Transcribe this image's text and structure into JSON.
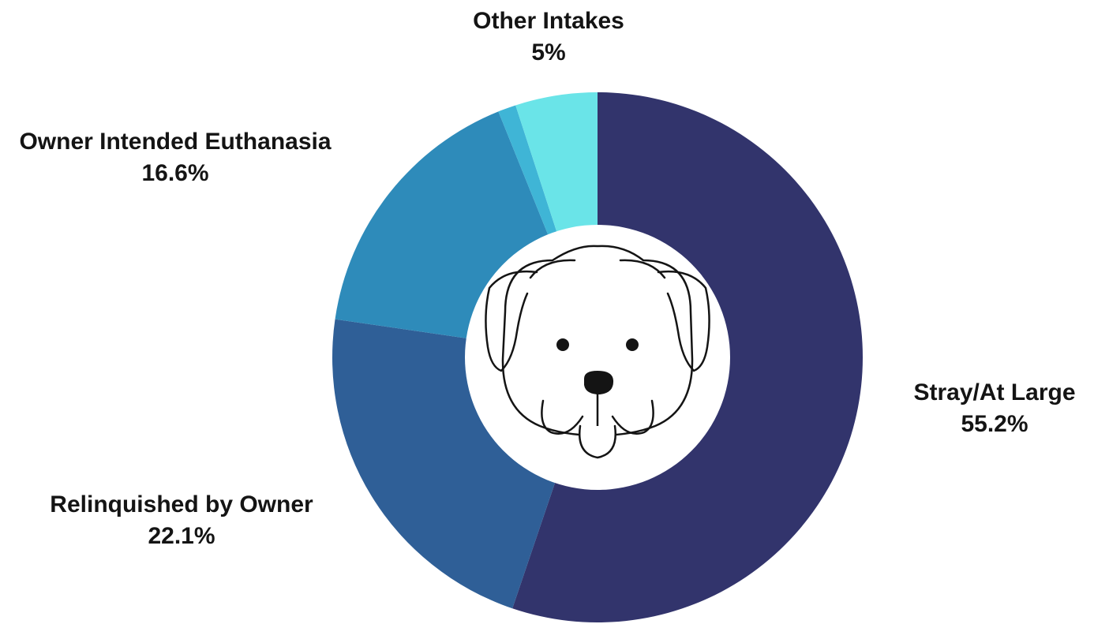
{
  "chart_data": {
    "type": "pie",
    "variant": "donut",
    "categories": [
      "Stray/At Large",
      "Relinquished by Owner",
      "Owner Intended Euthanasia",
      "",
      "Other Intakes"
    ],
    "values": [
      55.2,
      22.1,
      16.6,
      1.1,
      5.0
    ],
    "value_labels": [
      "55.2%",
      "22.1%",
      "16.6%",
      "",
      "5%"
    ],
    "colors": [
      "#32346c",
      "#2f5f97",
      "#2e8bba",
      "#3fb5d6",
      "#6ae4e8"
    ],
    "center_icon": "dog-face-icon"
  }
}
